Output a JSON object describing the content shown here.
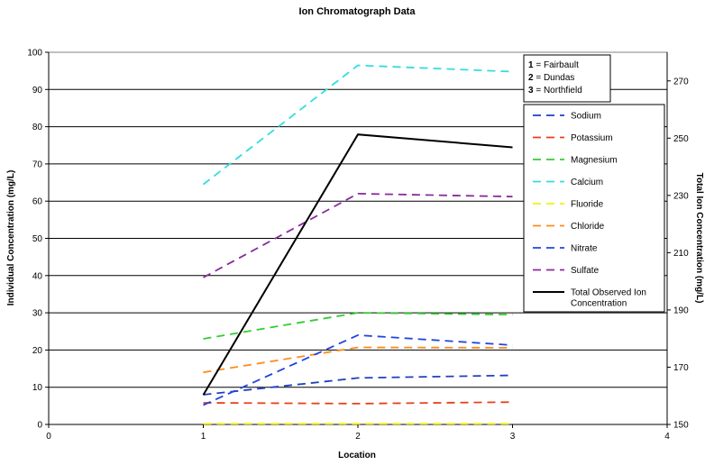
{
  "chart_data": {
    "type": "line",
    "title": "Ion Chromatograph Data",
    "xlabel": "Location",
    "ylabel": "Individual Concentration (mg/L)",
    "y2label": "Total Ion Concentration (mg/L)",
    "xlim": [
      0,
      4
    ],
    "ylim": [
      0,
      100
    ],
    "y2lim": [
      150,
      280
    ],
    "x_ticks": [
      0,
      1,
      2,
      3,
      4
    ],
    "y_ticks": [
      0,
      10,
      20,
      30,
      40,
      50,
      60,
      70,
      80,
      90,
      100
    ],
    "y2_ticks": [
      150,
      170,
      190,
      210,
      230,
      250,
      270
    ],
    "grid": "horizontal",
    "location_key": [
      {
        "num": "1",
        "name": "= Fairbault"
      },
      {
        "num": "2",
        "name": "= Dundas"
      },
      {
        "num": "3",
        "name": "= Northfield"
      }
    ],
    "legend_position": "right",
    "x": [
      1,
      2,
      3
    ],
    "series": [
      {
        "name": "Sodium",
        "color": "#1f3fbf",
        "dash": "dashed",
        "axis": "left",
        "values": [
          8,
          12.5,
          13.2
        ]
      },
      {
        "name": "Potassium",
        "color": "#e8401c",
        "dash": "dashed",
        "axis": "left",
        "values": [
          5.8,
          5.6,
          6.0
        ]
      },
      {
        "name": "Magnesium",
        "color": "#33cc33",
        "dash": "dashed",
        "axis": "left",
        "values": [
          23,
          30,
          29.5
        ]
      },
      {
        "name": "Calcium",
        "color": "#33dddd",
        "dash": "dashed",
        "axis": "left",
        "values": [
          64.5,
          96.5,
          94.8
        ]
      },
      {
        "name": "Fluoride",
        "color": "#f2f20a",
        "dash": "dashed",
        "axis": "left",
        "values": [
          0.2,
          0.2,
          0.2
        ]
      },
      {
        "name": "Chloride",
        "color": "#ff8c1a",
        "dash": "dashed",
        "axis": "left",
        "values": [
          14,
          20.7,
          20.6
        ]
      },
      {
        "name": "Nitrate",
        "color": "#2244dd",
        "dash": "dashed",
        "axis": "left",
        "values": [
          5.2,
          24,
          21.3
        ]
      },
      {
        "name": "Sulfate",
        "color": "#8a2b9c",
        "dash": "dashed",
        "axis": "left",
        "values": [
          39.5,
          62,
          61.2
        ]
      },
      {
        "name": "Total Observed Ion Concentration",
        "color": "#000000",
        "dash": "solid",
        "axis": "right",
        "values": [
          160.3,
          251.3,
          246.8
        ]
      }
    ]
  }
}
